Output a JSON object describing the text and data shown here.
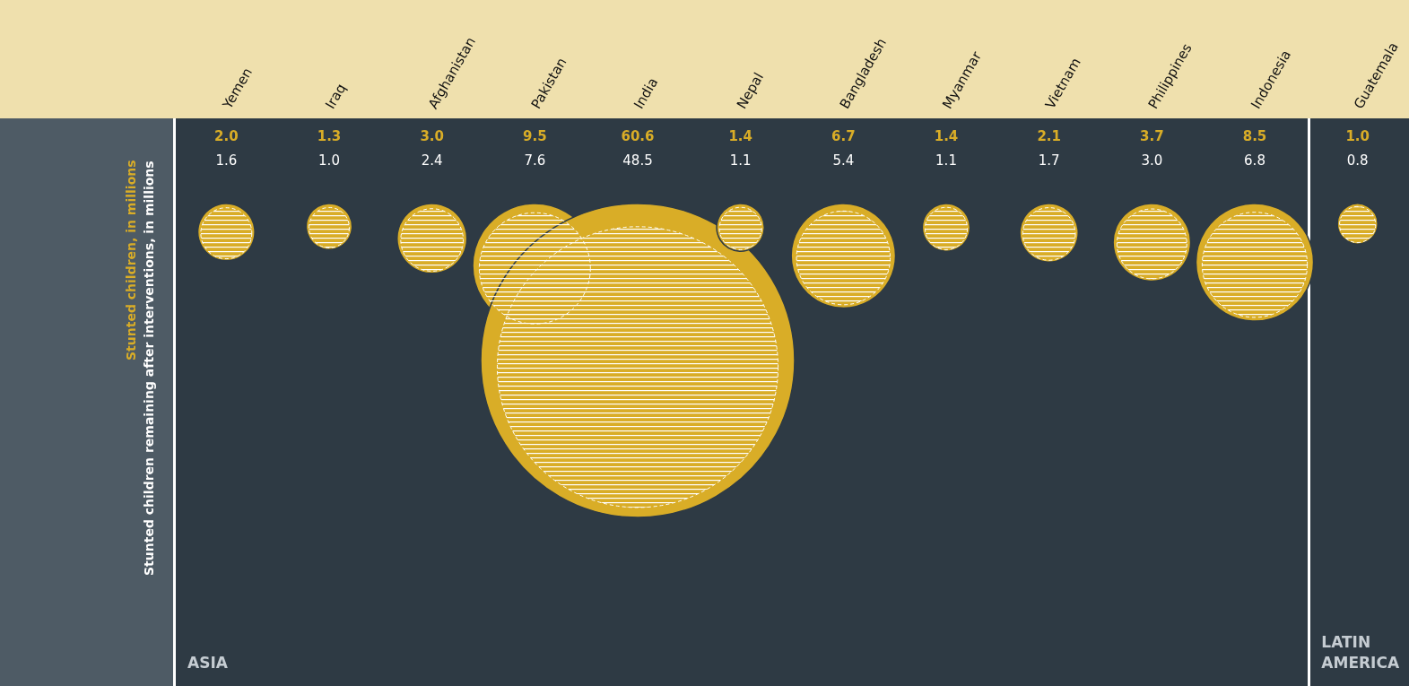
{
  "chart_data": {
    "type": "other",
    "categories": [
      "Yemen",
      "Iraq",
      "Afghanistan",
      "Pakistan",
      "India",
      "Nepal",
      "Bangladesh",
      "Myanmar",
      "Vietnam",
      "Philippines",
      "Indonesia",
      "Guatemala"
    ],
    "series": [
      {
        "name": "Stunted children, in millions",
        "color": "#d9ad27",
        "values": [
          2.0,
          1.3,
          3.0,
          9.5,
          60.6,
          1.4,
          6.7,
          1.4,
          2.1,
          3.7,
          8.5,
          1.0
        ],
        "value_labels": [
          "2.0",
          "1.3",
          "3.0",
          "9.5",
          "60.6",
          "1.4",
          "6.7",
          "1.4",
          "2.1",
          "3.7",
          "8.5",
          "1.0"
        ]
      },
      {
        "name": "Stunted children remaining after interventions, in millions",
        "color": "#ffffff",
        "values": [
          1.6,
          1.0,
          2.4,
          7.6,
          48.5,
          1.1,
          5.4,
          1.1,
          1.7,
          3.0,
          6.8,
          0.8
        ],
        "value_labels": [
          "1.6",
          "1.0",
          "2.4",
          "7.6",
          "48.5",
          "1.1",
          "5.4",
          "1.1",
          "1.7",
          "3.0",
          "6.8",
          "0.8"
        ]
      }
    ],
    "annotations": [
      "ASIA",
      "LATIN AMERICA"
    ]
  }
}
